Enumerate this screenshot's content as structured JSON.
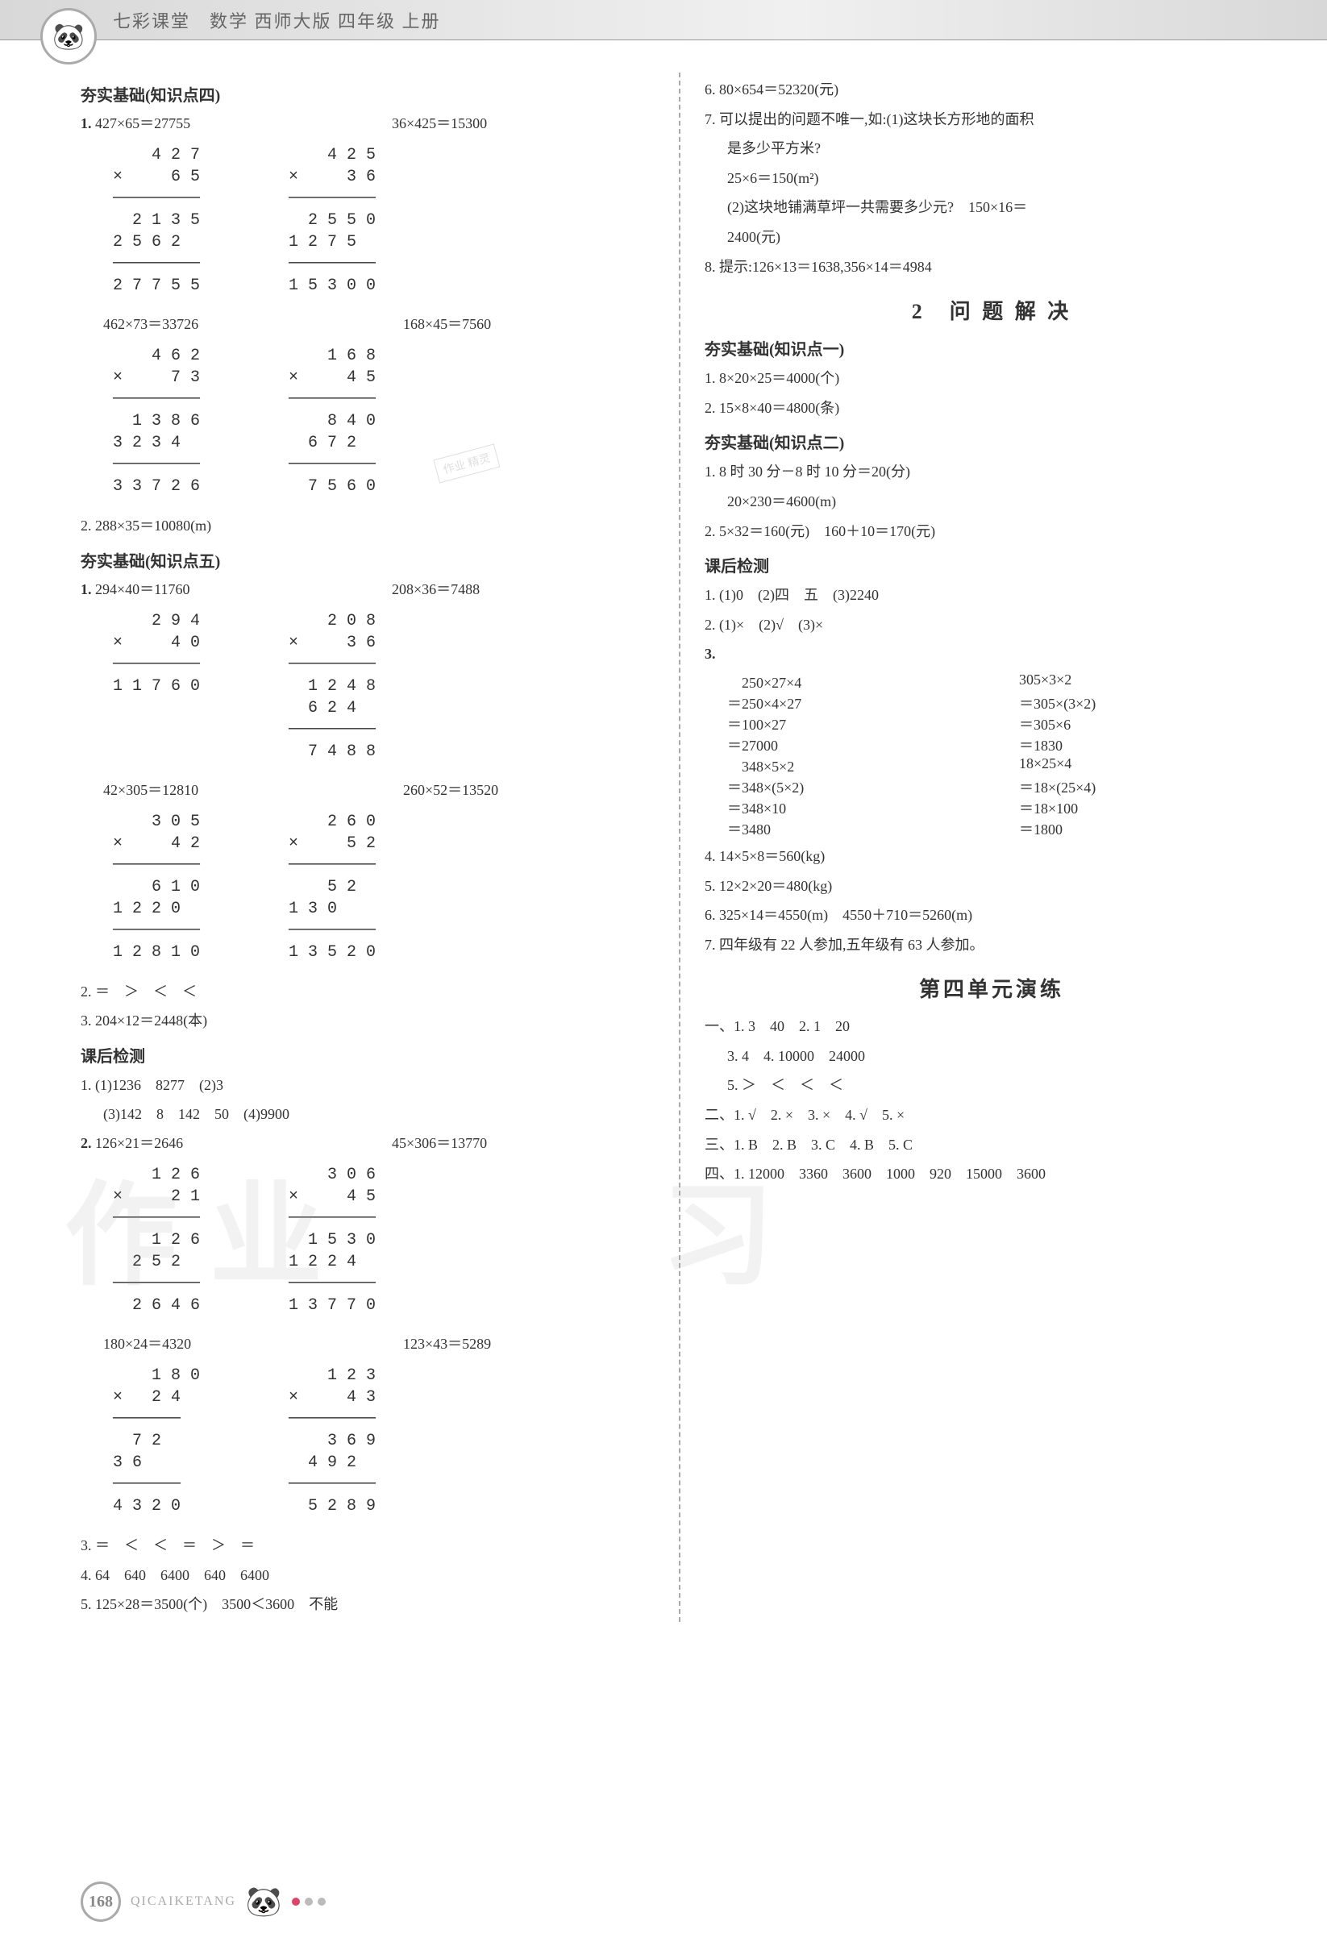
{
  "header": {
    "title": "七彩课堂　数学 西师大版 四年级 上册",
    "mascot": "🐼"
  },
  "left": {
    "sec4": {
      "title": "夯实基础(知识点四)",
      "q1": {
        "label": "1.",
        "eqA": "427×65＝27755",
        "eqB": "36×425＝15300",
        "calcA": "    4 2 7\n×     6 5\n─────────\n  2 1 3 5\n2 5 6 2\n─────────\n2 7 7 5 5",
        "calcB": "    4 2 5\n×     3 6\n─────────\n  2 5 5 0\n1 2 7 5\n─────────\n1 5 3 0 0",
        "eqC": "462×73＝33726",
        "eqD": "168×45＝7560",
        "calcC": "    4 6 2\n×     7 3\n─────────\n  1 3 8 6\n3 2 3 4\n─────────\n3 3 7 2 6",
        "calcD": "    1 6 8\n×     4 5\n─────────\n    8 4 0\n  6 7 2\n─────────\n  7 5 6 0"
      },
      "q2": "2. 288×35＝10080(m)"
    },
    "sec5": {
      "title": "夯实基础(知识点五)",
      "q1": {
        "label": "1.",
        "eqA": "294×40＝11760",
        "eqB": "208×36＝7488",
        "calcA": "    2 9 4\n×     4 0\n─────────\n1 1 7 6 0",
        "calcB": "    2 0 8\n×     3 6\n─────────\n  1 2 4 8\n  6 2 4\n─────────\n  7 4 8 8",
        "eqC": "42×305＝12810",
        "eqD": "260×52＝13520",
        "calcC": "    3 0 5\n×     4 2\n─────────\n    6 1 0\n1 2 2 0\n─────────\n1 2 8 1 0",
        "calcD": "    2 6 0\n×     5 2\n─────────\n    5 2\n1 3 0\n─────────\n1 3 5 2 0"
      },
      "q2": "2. ＝　＞　＜　＜",
      "q3": "3. 204×12＝2448(本)"
    },
    "test": {
      "title": "课后检测",
      "l1": "1. (1)1236　8277　(2)3",
      "l1b": "(3)142　8　142　50　(4)9900",
      "q2": {
        "label": "2.",
        "eqA": "126×21＝2646",
        "eqB": "45×306＝13770",
        "calcA": "    1 2 6\n×     2 1\n─────────\n    1 2 6\n  2 5 2\n─────────\n  2 6 4 6",
        "calcB": "    3 0 6\n×     4 5\n─────────\n  1 5 3 0\n1 2 2 4\n─────────\n1 3 7 7 0",
        "eqC": "180×24＝4320",
        "eqD": "123×43＝5289",
        "calcC": "    1 8 0\n×   2 4\n───────\n  7 2\n3 6\n───────\n4 3 2 0",
        "calcD": "    1 2 3\n×     4 3\n─────────\n    3 6 9\n  4 9 2\n─────────\n  5 2 8 9"
      },
      "l3": "3. ＝　＜　＜　＝　＞　＝",
      "l4": "4. 64　640　6400　640　6400",
      "l5": "5. 125×28＝3500(个)　3500＜3600　不能"
    }
  },
  "right": {
    "top": {
      "l6": "6. 80×654＝52320(元)",
      "l7a": "7. 可以提出的问题不唯一,如:(1)这块长方形地的面积",
      "l7b": "是多少平方米?",
      "l7c": "25×6＝150(m²)",
      "l7d": "(2)这块地铺满草坪一共需要多少元?　150×16＝",
      "l7e": "2400(元)",
      "l8": "8. 提示:126×13＝1638,356×14＝4984"
    },
    "problem": {
      "title": "2　问 题 解 决",
      "sec1_title": "夯实基础(知识点一)",
      "sec1_l1": "1. 8×20×25＝4000(个)",
      "sec1_l2": "2. 15×8×40＝4800(条)",
      "sec2_title": "夯实基础(知识点二)",
      "sec2_l1": "1. 8 时 30 分－8 时 10 分＝20(分)",
      "sec2_l1b": "20×230＝4600(m)",
      "sec2_l2": "2. 5×32＝160(元)　160＋10＝170(元)",
      "test_title": "课后检测",
      "t_l1": "1. (1)0　(2)四　五　(3)2240",
      "t_l2": "2. (1)×　(2)√　(3)×",
      "t_l3_label": "3.",
      "t_l3_a1": "　250×27×4",
      "t_l3_b1": "305×3×2",
      "t_l3_a2": "＝250×4×27",
      "t_l3_b2": "＝305×(3×2)",
      "t_l3_a3": "＝100×27",
      "t_l3_b3": "＝305×6",
      "t_l3_a4": "＝27000",
      "t_l3_b4": "＝1830",
      "t_l3_c1": "　348×5×2",
      "t_l3_d1": "18×25×4",
      "t_l3_c2": "＝348×(5×2)",
      "t_l3_d2": "＝18×(25×4)",
      "t_l3_c3": "＝348×10",
      "t_l3_d3": "＝18×100",
      "t_l3_c4": "＝3480",
      "t_l3_d4": "＝1800",
      "t_l4": "4. 14×5×8＝560(kg)",
      "t_l5": "5. 12×2×20＝480(kg)",
      "t_l6": "6. 325×14＝4550(m)　4550＋710＝5260(m)",
      "t_l7": "7. 四年级有 22 人参加,五年级有 63 人参加。"
    },
    "unit4": {
      "title": "第四单元演练",
      "l1": "一、1. 3　40　2. 1　20",
      "l1b": "3. 4　4. 10000　24000",
      "l1c": "5. ＞　＜　＜　＜",
      "l2": "二、1. √　2. ×　3. ×　4. √　5. ×",
      "l3": "三、1. B　2. B　3. C　4. B　5. C",
      "l4": "四、1. 12000　3360　3600　1000　920　15000　3600"
    }
  },
  "footer": {
    "page": "168",
    "brand": "QICAIKETANG",
    "mascot": "🐼",
    "dots": [
      "#d46",
      "#bbb",
      "#bbb"
    ]
  },
  "watermark": {
    "text1": "作业",
    "text2": "习"
  },
  "stamp": "作业\n精灵"
}
